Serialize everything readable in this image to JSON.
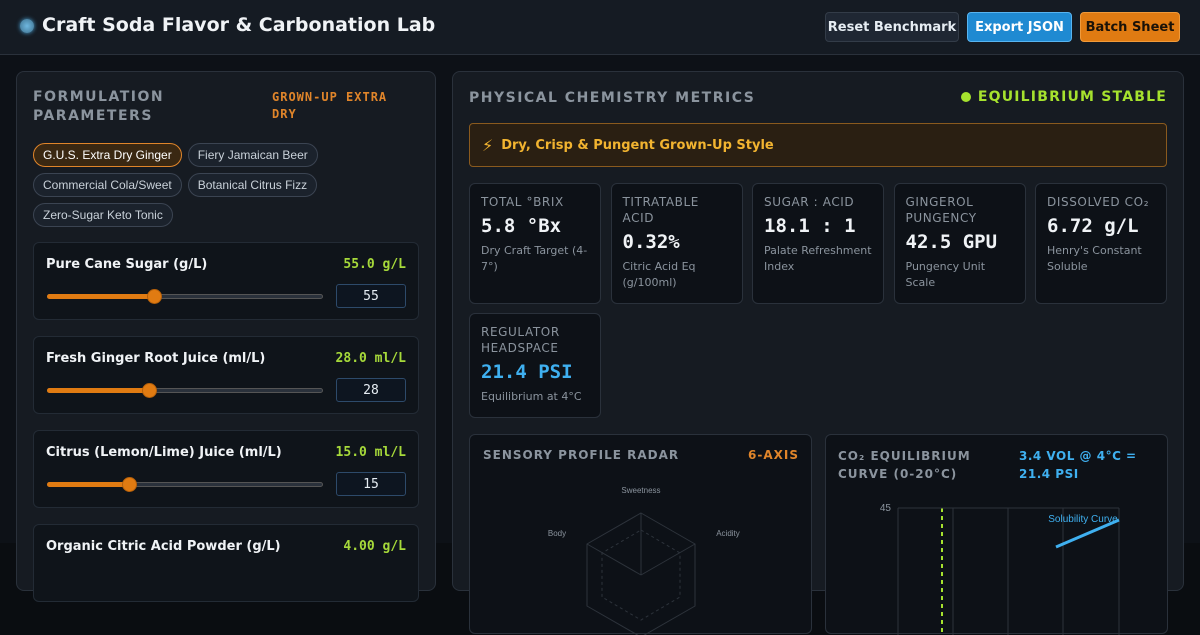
{
  "header": {
    "title": "Craft Soda Flavor & Carbonation Lab",
    "buttons": [
      "Reset Benchmark",
      "Export JSON",
      "Batch Sheet"
    ]
  },
  "formulation": {
    "title": "FORMULATION PARAMETERS",
    "badge": "GROWN-UP EXTRA DRY",
    "presets": [
      {
        "label": "G.U.S. Extra Dry Ginger",
        "active": true
      },
      {
        "label": "Fiery Jamaican Beer",
        "active": false
      },
      {
        "label": "Commercial Cola/Sweet",
        "active": false
      },
      {
        "label": "Botanical Citrus Fizz",
        "active": false
      },
      {
        "label": "Zero-Sugar Keto Tonic",
        "active": false
      }
    ],
    "sliders": [
      {
        "label": "Pure Cane Sugar (g/L)",
        "readout": "55.0 g/L",
        "value": 55,
        "range": [
          0,
          140
        ]
      },
      {
        "label": "Fresh Ginger Root Juice (ml/L)",
        "readout": "28.0 ml/L",
        "value": 28,
        "range": [
          0,
          75
        ]
      },
      {
        "label": "Citrus (Lemon/Lime) Juice (ml/L)",
        "readout": "15.0 ml/L",
        "value": 15,
        "range": [
          0,
          50
        ]
      },
      {
        "label": "Organic Citric Acid Powder (g/L)",
        "readout": "4.00 g/L"
      }
    ]
  },
  "metrics": {
    "title": "PHYSICAL CHEMISTRY METRICS",
    "status": "EQUILIBRIUM STABLE",
    "banner": "Dry, Crisp & Pungent Grown-Up Style",
    "cards": [
      {
        "label": "TOTAL °BRIX",
        "value": "5.8 °Bx",
        "note": "Dry Craft Target (4-7°)"
      },
      {
        "label": "TITRATABLE ACID",
        "value": "0.32%",
        "note": "Citric Acid Eq (g/100ml)"
      },
      {
        "label": "SUGAR : ACID",
        "value": "18.1 : 1",
        "note": "Palate Refreshment Index"
      },
      {
        "label": "GINGEROL PUNGENCY",
        "value": "42.5 GPU",
        "note": "Pungency Unit Scale"
      },
      {
        "label": "DISSOLVED CO₂",
        "value": "6.72 g/L",
        "note": "Henry's Constant Soluble"
      },
      {
        "label": "REGULATOR HEADSPACE",
        "value": "21.4 PSI",
        "note": "Equilibrium at 4°C",
        "highlight": true
      }
    ],
    "radar": {
      "title": "SENSORY PROFILE RADAR",
      "badge": "6-AXIS",
      "axes": [
        "Sweetness",
        "Acidity",
        "Body"
      ]
    },
    "co2": {
      "title": "CO₂ EQUILIBRIUM CURVE (0-20°C)",
      "badge": "3.4 VOL @ 4°C = 21.4 PSI",
      "yticks": [
        45
      ],
      "series_label": "Solubility Curve"
    }
  }
}
